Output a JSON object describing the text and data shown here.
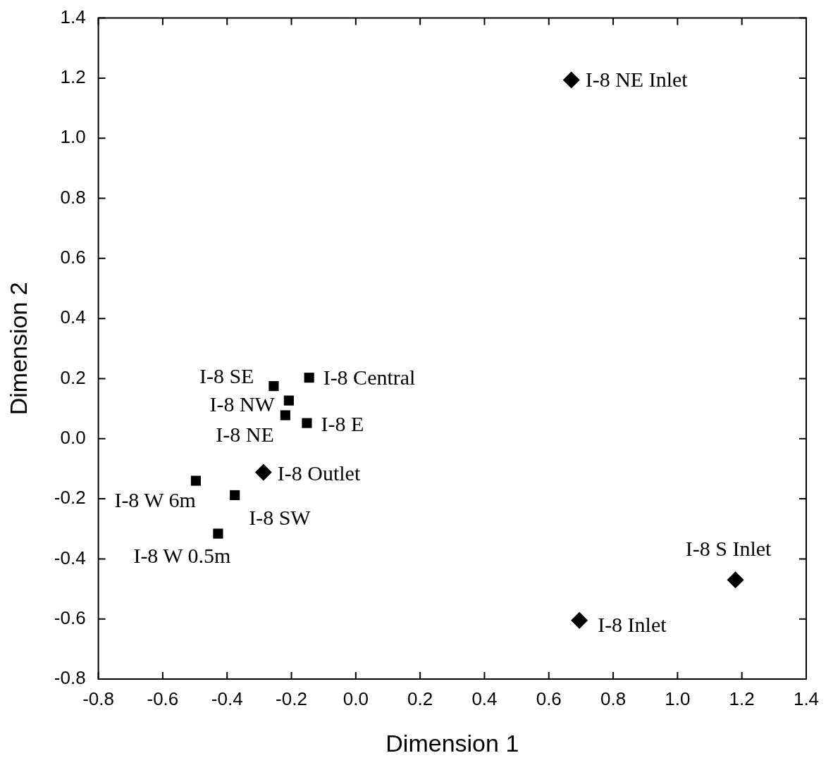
{
  "chart_data": {
    "type": "scatter",
    "xlabel": "Dimension 1",
    "ylabel": "Dimension 2",
    "xlim": [
      -0.8,
      1.4
    ],
    "xticks": [
      -0.8,
      -0.6,
      -0.4,
      -0.2,
      {
        "value": 0,
        "label": "0.0"
      },
      0.2,
      0.4,
      0.6,
      0.8,
      {
        "value": 1,
        "label": "1.0"
      },
      1.2,
      1.4
    ],
    "ylim": [
      -0.8,
      1.4
    ],
    "yticks": [
      -0.8,
      -0.6,
      -0.4,
      -0.2,
      {
        "value": 0,
        "label": "0.0"
      },
      0.2,
      0.4,
      0.6,
      0.8,
      {
        "value": 1,
        "label": "1.0"
      },
      1.2,
      1.4
    ],
    "grid": false,
    "legend": false,
    "series": [
      {
        "color": "#000000",
        "marker": "square",
        "x": [
          -0.145,
          -0.255,
          -0.208,
          -0.219,
          -0.152,
          -0.497,
          -0.376,
          -0.428
        ],
        "values": [
          0.203,
          0.175,
          0.127,
          0.078,
          0.052,
          -0.14,
          -0.188,
          -0.316
        ]
      },
      {
        "color": "#000000",
        "marker": "diamond",
        "x": [
          0.67,
          -0.287,
          1.18,
          0.695
        ],
        "values": [
          1.194,
          -0.112,
          -0.47,
          -0.605
        ]
      }
    ],
    "annotations": [
      {
        "text": "I-8 NE Inlet",
        "x": 0.67,
        "y": 1.194
      },
      {
        "text": "I-8 Central",
        "x": -0.145,
        "y": 0.203
      },
      {
        "text": "I-8 SE",
        "x": -0.255,
        "y": 0.175
      },
      {
        "text": "I-8 NW",
        "x": -0.208,
        "y": 0.127
      },
      {
        "text": "I-8 NE",
        "x": -0.219,
        "y": 0.078
      },
      {
        "text": "I-8 E",
        "x": -0.152,
        "y": 0.052
      },
      {
        "text": "I-8 Outlet",
        "x": -0.287,
        "y": -0.112
      },
      {
        "text": "I-8 W 6m",
        "x": -0.497,
        "y": -0.14
      },
      {
        "text": "I-8 SW",
        "x": -0.376,
        "y": -0.188
      },
      {
        "text": "I-8 W 0.5m",
        "x": -0.428,
        "y": -0.316
      },
      {
        "text": "I-8 S Inlet",
        "x": 1.18,
        "y": -0.47
      },
      {
        "text": "I-8 Inlet",
        "x": 0.695,
        "y": -0.605
      }
    ]
  }
}
